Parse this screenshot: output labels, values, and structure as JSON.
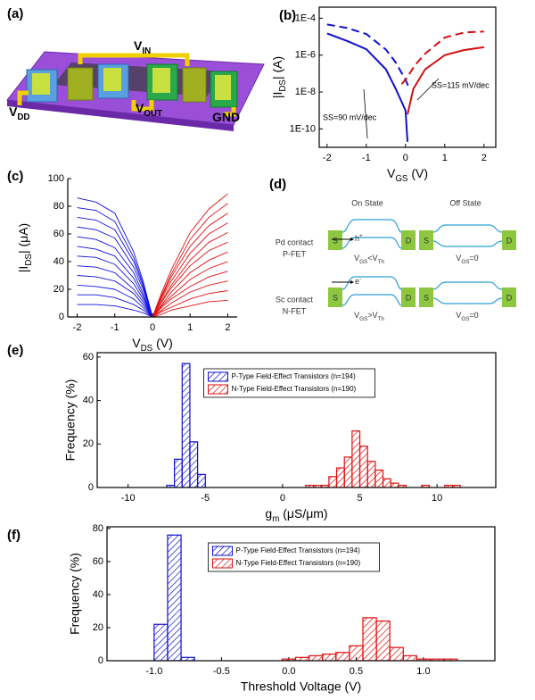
{
  "device": {
    "panel_label": "(a)",
    "labels": [
      [
        "V",
        "IN"
      ],
      [
        "V",
        "DD"
      ],
      [
        "V",
        "OUT"
      ],
      [
        "GND"
      ]
    ]
  },
  "band_diagram": {
    "panel_label": "(d)",
    "columns": [
      "On State",
      "Off State"
    ],
    "rows": [
      {
        "contact": "Pd contact",
        "fet": "P-FET",
        "carrier": [
          "h",
          "+"
        ],
        "on": [
          "V",
          "GS",
          "<V",
          "Th"
        ],
        "off": [
          "V",
          "GS",
          "=0"
        ],
        "terminals": [
          "S",
          "D"
        ]
      },
      {
        "contact": "Sc contact",
        "fet": "N-FET",
        "carrier": [
          "e",
          "-"
        ],
        "on": [
          "V",
          "GS",
          ">V",
          "Th"
        ],
        "off": [
          "V",
          "GS",
          "=0"
        ],
        "terminals": [
          "S",
          "D"
        ]
      }
    ]
  },
  "chart_data": [
    {
      "type": "line",
      "panel_label": "(b)",
      "xlabel": [
        "V",
        "GS",
        " (V)"
      ],
      "ylabel": [
        "|I",
        "DS",
        "| (A)"
      ],
      "xlim": [
        -2.2,
        2.3
      ],
      "xticks": [
        -2,
        -1,
        0,
        1,
        2
      ],
      "yscale": "log",
      "ylim": [
        1e-11,
        0.0004
      ],
      "yticks": [
        {
          "value": 1e-10,
          "label": "1E-10"
        },
        {
          "value": 1e-08,
          "label": "1E-8"
        },
        {
          "value": 1e-06,
          "label": "1E-6"
        },
        {
          "value": 0.0001,
          "label": "1E-4"
        }
      ],
      "annotations": [
        "SS=90 mV/dec",
        "SS=115 mV/dec"
      ],
      "series": [
        {
          "color": "#1010d0",
          "linestyle": "solid",
          "x": [
            -2,
            -1.5,
            -1,
            -0.5,
            -0.25,
            0,
            0.05
          ],
          "values": [
            1.5e-05,
            6e-06,
            2.1e-06,
            1.7e-07,
            1.5e-08,
            1e-09,
            2e-11
          ]
        },
        {
          "color": "#1010d0",
          "linestyle": "dashed",
          "x": [
            -2,
            -1.5,
            -1,
            -0.5,
            -0.25,
            0,
            0.1
          ],
          "values": [
            4.6e-05,
            3e-05,
            1.4e-05,
            2e-06,
            4e-07,
            4.6e-08,
            1.5e-08
          ]
        },
        {
          "color": "#d01010",
          "linestyle": "solid",
          "x": [
            0.05,
            0.2,
            0.5,
            1,
            1.5,
            2
          ],
          "values": [
            6e-10,
            1.5e-08,
            1.7e-07,
            1e-06,
            1.9e-06,
            2.7e-06
          ]
        },
        {
          "color": "#d01010",
          "linestyle": "dashed",
          "x": [
            -0.1,
            0,
            0.25,
            0.5,
            1,
            1.5,
            2
          ],
          "values": [
            2.7e-08,
            4.6e-08,
            3e-07,
            1.2e-06,
            9e-06,
            1.7e-05,
            1.9e-05
          ]
        }
      ]
    },
    {
      "type": "line",
      "panel_label": "(c)",
      "xlabel": [
        "V",
        "DS",
        " (V)"
      ],
      "ylabel": [
        "|I",
        "DS",
        "| (μA)"
      ],
      "xlim": [
        -2.25,
        2.25
      ],
      "xticks": [
        -2,
        -1,
        0,
        1,
        2
      ],
      "ylim": [
        0,
        100
      ],
      "yticks": [
        0,
        20,
        40,
        60,
        80,
        100
      ],
      "series": [
        {
          "color": "#1010e0",
          "x": [
            -2,
            -1.5,
            -1,
            -0.5,
            -0.25,
            0
          ],
          "values": [
            86,
            83,
            75,
            47,
            26,
            0
          ]
        },
        {
          "color": "#1010e0",
          "x": [
            -2,
            -1.5,
            -1,
            -0.5,
            -0.25,
            0
          ],
          "values": [
            79,
            77,
            69,
            43,
            24,
            0
          ]
        },
        {
          "color": "#1010e0",
          "x": [
            -2,
            -1.5,
            -1,
            -0.5,
            -0.25,
            0
          ],
          "values": [
            72,
            70,
            63,
            40,
            22,
            0
          ]
        },
        {
          "color": "#1010e0",
          "x": [
            -2,
            -1.5,
            -1,
            -0.5,
            -0.25,
            0
          ],
          "values": [
            65,
            63,
            57,
            36,
            20,
            0
          ]
        },
        {
          "color": "#1010e0",
          "x": [
            -2,
            -1.5,
            -1,
            -0.5,
            -0.25,
            0
          ],
          "values": [
            58,
            56,
            50,
            32,
            17,
            0
          ]
        },
        {
          "color": "#1010e0",
          "x": [
            -2,
            -1.5,
            -1,
            -0.5,
            -0.25,
            0
          ],
          "values": [
            51,
            49,
            44,
            28,
            15,
            0
          ]
        },
        {
          "color": "#1010e0",
          "x": [
            -2,
            -1.5,
            -1,
            -0.5,
            -0.25,
            0
          ],
          "values": [
            44,
            43,
            38,
            24,
            13,
            0
          ]
        },
        {
          "color": "#1010e0",
          "x": [
            -2,
            -1.5,
            -1,
            -0.5,
            -0.25,
            0
          ],
          "values": [
            37,
            36,
            32,
            20,
            11,
            0
          ]
        },
        {
          "color": "#1010e0",
          "x": [
            -2,
            -1.5,
            -1,
            -0.5,
            -0.25,
            0
          ],
          "values": [
            30,
            29,
            26,
            17,
            9,
            0
          ]
        },
        {
          "color": "#1010e0",
          "x": [
            -2,
            -1.5,
            -1,
            -0.5,
            -0.25,
            0
          ],
          "values": [
            23,
            22,
            20,
            13,
            7,
            0
          ]
        },
        {
          "color": "#1010e0",
          "x": [
            -2,
            -1.5,
            -1,
            -0.5,
            -0.25,
            0
          ],
          "values": [
            16,
            16,
            14,
            9,
            5,
            0
          ]
        },
        {
          "color": "#1010e0",
          "x": [
            -2,
            -1.5,
            -1,
            -0.5,
            -0.25,
            0
          ],
          "values": [
            9,
            9,
            8,
            5,
            3,
            0
          ]
        },
        {
          "color": "#e01010",
          "x": [
            0,
            0.25,
            0.5,
            1,
            1.5,
            2
          ],
          "values": [
            0,
            18,
            34,
            61,
            78,
            89
          ]
        },
        {
          "color": "#e01010",
          "x": [
            0,
            0.25,
            0.5,
            1,
            1.5,
            2
          ],
          "values": [
            0,
            16,
            31,
            56,
            72,
            82
          ]
        },
        {
          "color": "#e01010",
          "x": [
            0,
            0.25,
            0.5,
            1,
            1.5,
            2
          ],
          "values": [
            0,
            15,
            29,
            51,
            66,
            75
          ]
        },
        {
          "color": "#e01010",
          "x": [
            0,
            0.25,
            0.5,
            1,
            1.5,
            2
          ],
          "values": [
            0,
            14,
            26,
            46,
            60,
            68
          ]
        },
        {
          "color": "#e01010",
          "x": [
            0,
            0.25,
            0.5,
            1,
            1.5,
            2
          ],
          "values": [
            0,
            12,
            23,
            41,
            54,
            61
          ]
        },
        {
          "color": "#e01010",
          "x": [
            0,
            0.25,
            0.5,
            1,
            1.5,
            2
          ],
          "values": [
            0,
            11,
            21,
            37,
            48,
            54
          ]
        },
        {
          "color": "#e01010",
          "x": [
            0,
            0.25,
            0.5,
            1,
            1.5,
            2
          ],
          "values": [
            0,
            9,
            18,
            32,
            41,
            47
          ]
        },
        {
          "color": "#e01010",
          "x": [
            0,
            0.25,
            0.5,
            1,
            1.5,
            2
          ],
          "values": [
            0,
            8,
            15,
            27,
            35,
            40
          ]
        },
        {
          "color": "#e01010",
          "x": [
            0,
            0.25,
            0.5,
            1,
            1.5,
            2
          ],
          "values": [
            0,
            7,
            13,
            22,
            29,
            33
          ]
        },
        {
          "color": "#e01010",
          "x": [
            0,
            0.25,
            0.5,
            1,
            1.5,
            2
          ],
          "values": [
            0,
            5,
            10,
            18,
            23,
            26
          ]
        },
        {
          "color": "#e01010",
          "x": [
            0,
            0.25,
            0.5,
            1,
            1.5,
            2
          ],
          "values": [
            0,
            4,
            7,
            13,
            17,
            19
          ]
        },
        {
          "color": "#e01010",
          "x": [
            0,
            0.25,
            0.5,
            1,
            1.5,
            2
          ],
          "values": [
            0,
            2,
            5,
            8,
            11,
            12
          ]
        }
      ]
    },
    {
      "type": "histogram",
      "panel_label": "(e)",
      "xlabel": [
        "g",
        "m",
        " (μS/μm)"
      ],
      "ylabel": "Frequency (%)",
      "xlim": [
        -12,
        13.8
      ],
      "xticks": [
        -10,
        -5,
        0,
        5,
        10
      ],
      "ylim": [
        0,
        62
      ],
      "yticks": [
        0,
        20,
        40,
        60
      ],
      "legend": "upper center",
      "series": [
        {
          "name": "P-Type Field-Effect Transistors (n=194)",
          "color": "#1010d0",
          "bins": [
            -7.5,
            -7,
            -6.5,
            -6,
            -5.5,
            -5
          ],
          "values": [
            1,
            13,
            57,
            21,
            6
          ]
        },
        {
          "name": "N-Type Field-Effect Transistors (n=190)",
          "color": "#e01010",
          "bins": [
            1.5,
            2,
            2.5,
            3,
            3.5,
            4,
            4.5,
            5,
            5.5,
            6,
            6.5,
            7,
            7.5,
            8,
            8.5,
            9,
            9.5,
            10,
            10.5,
            11,
            11.5
          ],
          "values": [
            1,
            1,
            1,
            5,
            9,
            14,
            26,
            19,
            12,
            8,
            4,
            2,
            1,
            0,
            0,
            1,
            0,
            0,
            1,
            1
          ]
        }
      ]
    },
    {
      "type": "histogram",
      "panel_label": "(f)",
      "xlabel": "Threshold Voltage (V)",
      "ylabel": "Frequency (%)",
      "xlim": [
        -1.35,
        1.53
      ],
      "xticks": [
        {
          "value": -1,
          "label": "-1.0"
        },
        -0.5,
        {
          "value": 0,
          "label": "0.0"
        },
        0.5,
        {
          "value": 1,
          "label": "1.0"
        }
      ],
      "ylim": [
        0,
        81
      ],
      "yticks": [
        0,
        20,
        40,
        60,
        80
      ],
      "legend": "upper center",
      "series": [
        {
          "name": "P-Type Field-Effect Transistors (n=194)",
          "color": "#1010d0",
          "bins": [
            -1.0,
            -0.9,
            -0.8,
            -0.7
          ],
          "values": [
            22,
            76,
            2
          ]
        },
        {
          "name": "N-Type Field-Effect Transistors (n=190)",
          "color": "#e01010",
          "bins": [
            -0.05,
            0.05,
            0.15,
            0.25,
            0.35,
            0.45,
            0.55,
            0.65,
            0.75,
            0.85,
            0.95,
            1.05,
            1.15,
            1.25
          ],
          "values": [
            1,
            2,
            3,
            4,
            5,
            9,
            26,
            24,
            8,
            3,
            1,
            1,
            1
          ]
        }
      ]
    }
  ]
}
